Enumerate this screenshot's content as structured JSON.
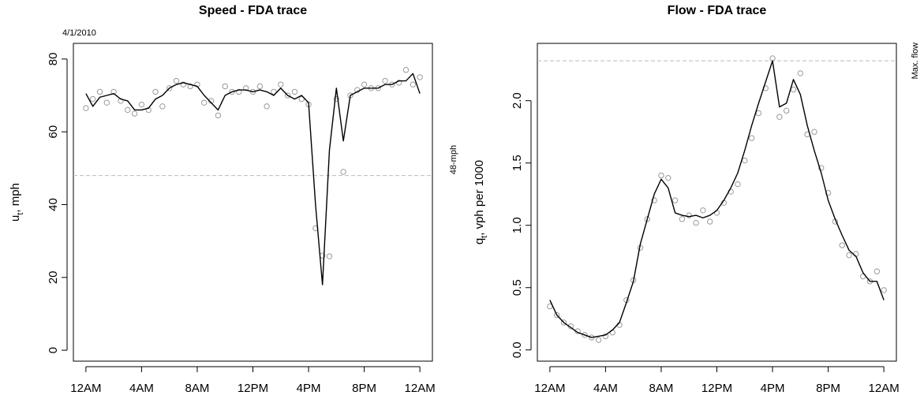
{
  "chart_data": [
    {
      "type": "line",
      "title": "Speed - FDA trace",
      "annotation": "4/1/2010",
      "ylabel": [
        "u",
        "t",
        ", mph"
      ],
      "x": [
        0,
        0.5,
        1,
        1.5,
        2,
        2.5,
        3,
        3.5,
        4,
        4.5,
        5,
        5.5,
        6,
        6.5,
        7,
        7.5,
        8,
        8.5,
        9,
        9.5,
        10,
        10.5,
        11,
        11.5,
        12,
        12.5,
        13,
        13.5,
        14,
        14.5,
        15,
        15.5,
        16,
        16.5,
        17,
        17.5,
        18,
        18.5,
        19,
        19.5,
        20,
        20.5,
        21,
        21.5,
        22,
        22.5,
        23,
        23.5,
        24
      ],
      "series": [
        {
          "style": "points",
          "color": "#9a9a9a",
          "values": [
            66.5,
            69,
            71,
            68,
            71,
            68.5,
            66,
            65,
            67.5,
            66,
            71,
            67,
            72,
            74,
            73,
            72.5,
            73,
            68,
            68.5,
            64.5,
            72.5,
            71,
            71,
            72,
            71,
            72.5,
            67,
            71,
            73,
            70,
            71,
            69,
            67.5,
            33.5,
            26,
            25.8,
            69,
            49,
            70,
            71.5,
            73,
            72,
            72,
            74,
            73,
            73.5,
            77,
            73,
            75
          ]
        },
        {
          "style": "line",
          "color": "#000000",
          "values": [
            70.5,
            67,
            69.5,
            70,
            70.5,
            69,
            68.5,
            66,
            66,
            66.5,
            69,
            70,
            72,
            73,
            73.5,
            73,
            72.5,
            70,
            68,
            66,
            70,
            71,
            71.5,
            71.5,
            71,
            71.5,
            71,
            70,
            72,
            70,
            69,
            70,
            68,
            40,
            18,
            55,
            72,
            57.5,
            70,
            71,
            72,
            72,
            72,
            73,
            73,
            74,
            74,
            76,
            70.5
          ]
        }
      ],
      "hline": {
        "value": 48,
        "label": "48-mph",
        "color": "#bbbbbb"
      },
      "xlim": [
        -0.9,
        24.9
      ],
      "ylim": [
        -3.0,
        84.3
      ],
      "xticks": [
        {
          "value": 0,
          "label": "12AM"
        },
        {
          "value": 4,
          "label": "4AM"
        },
        {
          "value": 8,
          "label": "8AM"
        },
        {
          "value": 12,
          "label": "12PM"
        },
        {
          "value": 16,
          "label": "4PM"
        },
        {
          "value": 20,
          "label": "8PM"
        },
        {
          "value": 24,
          "label": "12AM"
        }
      ],
      "yticks": [
        0,
        20,
        40,
        60,
        80
      ]
    },
    {
      "type": "line",
      "title": "Flow - FDA trace",
      "ylabel": [
        "q",
        "t",
        ", vph per 1000"
      ],
      "x": [
        0,
        0.5,
        1,
        1.5,
        2,
        2.5,
        3,
        3.5,
        4,
        4.5,
        5,
        5.5,
        6,
        6.5,
        7,
        7.5,
        8,
        8.5,
        9,
        9.5,
        10,
        10.5,
        11,
        11.5,
        12,
        12.5,
        13,
        13.5,
        14,
        14.5,
        15,
        15.5,
        16,
        16.5,
        17,
        17.5,
        18,
        18.5,
        19,
        19.5,
        20,
        20.5,
        21,
        21.5,
        22,
        22.5,
        23,
        23.5,
        24
      ],
      "series": [
        {
          "style": "points",
          "color": "#9a9a9a",
          "values": [
            0.35,
            0.28,
            0.22,
            0.19,
            0.15,
            0.12,
            0.1,
            0.08,
            0.11,
            0.14,
            0.2,
            0.4,
            0.56,
            0.82,
            1.05,
            1.2,
            1.4,
            1.38,
            1.2,
            1.05,
            1.08,
            1.02,
            1.12,
            1.03,
            1.1,
            1.18,
            1.27,
            1.33,
            1.52,
            1.7,
            1.9,
            2.1,
            2.34,
            1.87,
            1.92,
            2.09,
            2.22,
            1.73,
            1.75,
            1.46,
            1.26,
            1.03,
            0.84,
            0.76,
            0.77,
            0.59,
            0.55,
            0.63,
            0.48
          ]
        },
        {
          "style": "line",
          "color": "#000000",
          "values": [
            0.4,
            0.28,
            0.22,
            0.18,
            0.14,
            0.12,
            0.1,
            0.11,
            0.12,
            0.16,
            0.22,
            0.38,
            0.55,
            0.85,
            1.05,
            1.25,
            1.37,
            1.3,
            1.1,
            1.08,
            1.07,
            1.08,
            1.06,
            1.08,
            1.12,
            1.2,
            1.3,
            1.42,
            1.6,
            1.8,
            1.98,
            2.15,
            2.32,
            1.95,
            1.98,
            2.17,
            2.05,
            1.8,
            1.6,
            1.42,
            1.2,
            1.05,
            0.92,
            0.8,
            0.75,
            0.62,
            0.55,
            0.55,
            0.4
          ]
        }
      ],
      "hline": {
        "value": 2.32,
        "label": "Max. flow",
        "color": "#bbbbbb"
      },
      "xlim": [
        -0.9,
        24.9
      ],
      "ylim": [
        -0.09,
        2.46
      ],
      "xticks": [
        {
          "value": 0,
          "label": "12AM"
        },
        {
          "value": 4,
          "label": "4AM"
        },
        {
          "value": 8,
          "label": "8AM"
        },
        {
          "value": 12,
          "label": "12PM"
        },
        {
          "value": 16,
          "label": "4PM"
        },
        {
          "value": 20,
          "label": "8PM"
        },
        {
          "value": 24,
          "label": "12AM"
        }
      ],
      "yticks": [
        {
          "value": 0,
          "label": "0.0"
        },
        {
          "value": 0.5,
          "label": "0.5"
        },
        {
          "value": 1,
          "label": "1.0"
        },
        {
          "value": 1.5,
          "label": "1.5"
        },
        {
          "value": 2,
          "label": "2.0"
        }
      ]
    }
  ]
}
